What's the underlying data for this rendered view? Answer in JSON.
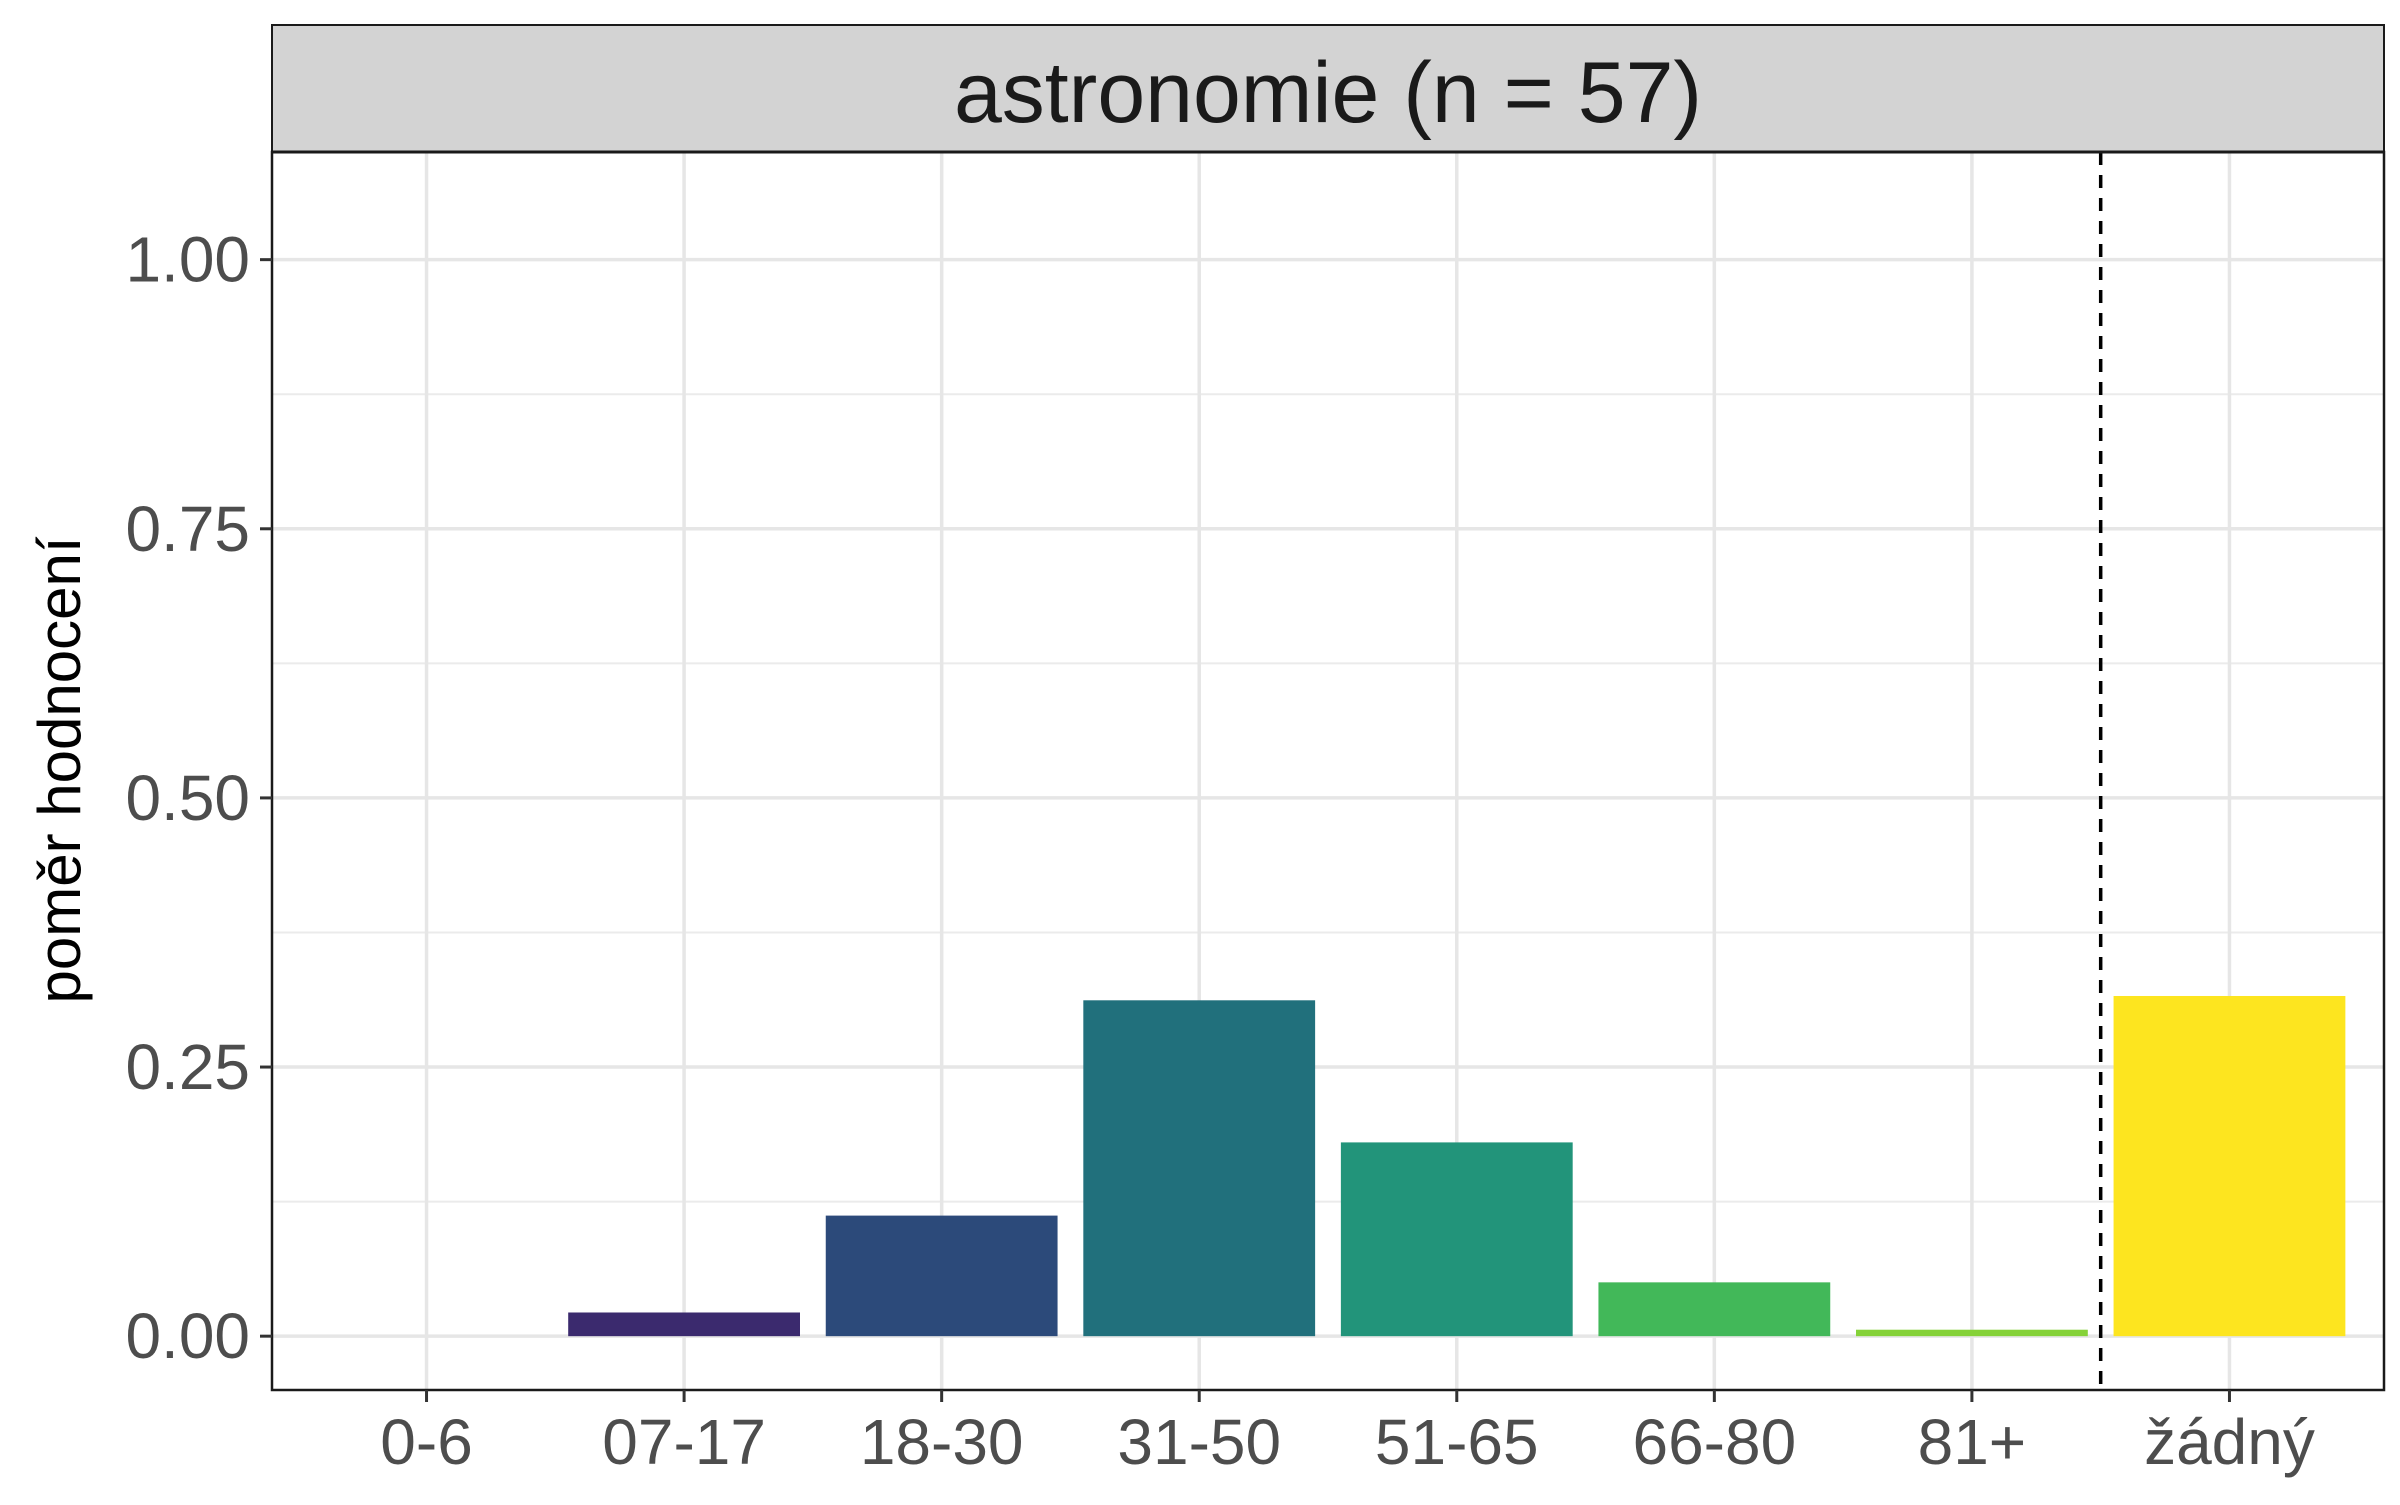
{
  "chart_data": {
    "type": "bar",
    "title": "astronomie (n = 57)",
    "xlabel": "",
    "ylabel": "poměr hodnocení",
    "categories": [
      "0-6",
      "07-17",
      "18-30",
      "31-50",
      "51-65",
      "66-80",
      "81+",
      "žádný"
    ],
    "values": [
      0.0,
      0.022,
      0.112,
      0.312,
      0.18,
      0.05,
      0.006,
      0.316
    ],
    "colors": [
      "#440154",
      "#3b2a6e",
      "#2c4a7a",
      "#21707c",
      "#22947a",
      "#42b859",
      "#85d238",
      "#fde51f"
    ],
    "ylim": [
      -0.05,
      1.1
    ],
    "yticks": [
      0.0,
      0.25,
      0.5,
      0.75,
      1.0
    ],
    "ytick_labels": [
      "0.00",
      "0.25",
      "0.50",
      "0.75",
      "1.00"
    ],
    "separator_after_category": "81+",
    "grid": true,
    "legend": "none"
  }
}
